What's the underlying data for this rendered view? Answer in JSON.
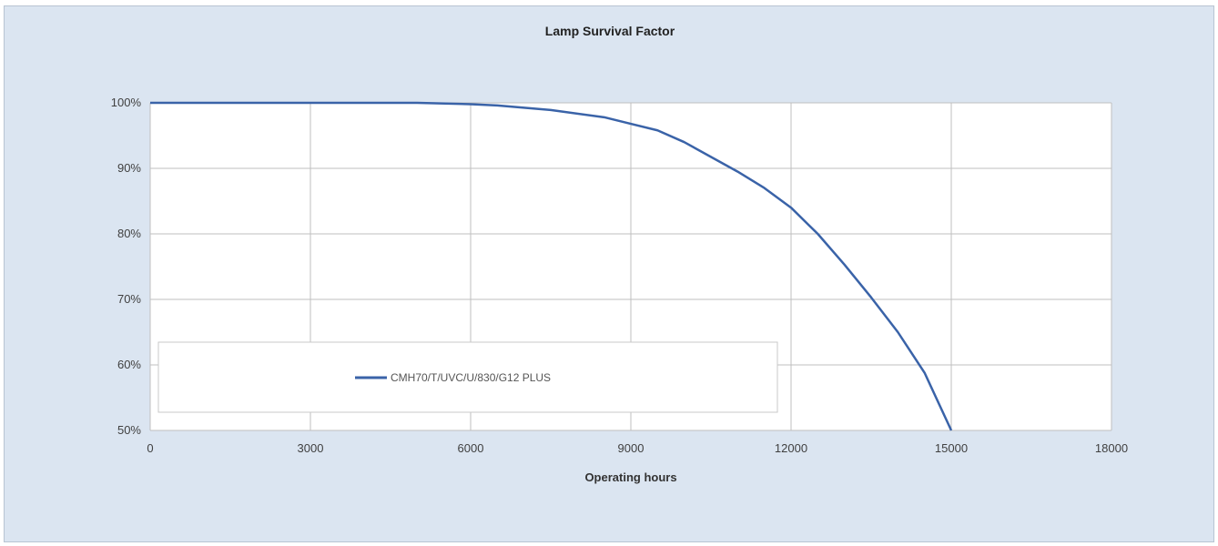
{
  "chart_data": {
    "type": "line",
    "title": "Lamp Survival Factor",
    "xlabel": "Operating hours",
    "ylabel": "",
    "xlim": [
      0,
      18000
    ],
    "ylim": [
      50,
      100
    ],
    "x_ticks": [
      0,
      3000,
      6000,
      9000,
      12000,
      15000,
      18000
    ],
    "y_ticks": [
      50,
      60,
      70,
      80,
      90,
      100
    ],
    "y_tick_labels": [
      "50%",
      "60%",
      "70%",
      "80%",
      "90%",
      "100%"
    ],
    "grid": true,
    "legend_position": "inside-bottom-left",
    "series": [
      {
        "name": "CMH70/T/UVC/U/830/G12 PLUS",
        "color": "#3a63a8",
        "x": [
          0,
          3000,
          5000,
          6000,
          6500,
          7500,
          8500,
          9000,
          9500,
          10000,
          11000,
          11500,
          12000,
          12500,
          13000,
          13500,
          14000,
          14500,
          15000
        ],
        "y": [
          100,
          100,
          100,
          99.8,
          99.6,
          98.9,
          97.8,
          96.8,
          95.8,
          94.0,
          89.5,
          87.0,
          84.0,
          80.0,
          75.3,
          70.3,
          65.0,
          58.8,
          50.0
        ]
      }
    ]
  }
}
